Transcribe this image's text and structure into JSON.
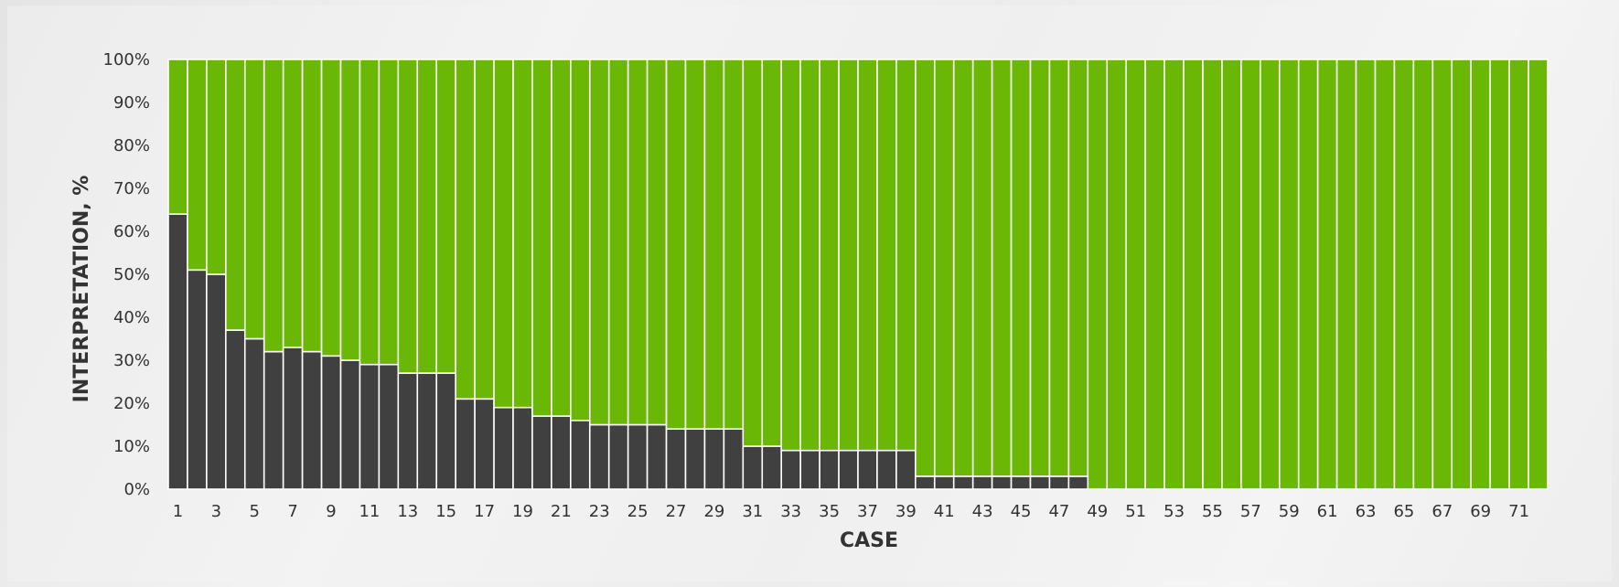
{
  "chart_data": {
    "type": "bar",
    "stacked": true,
    "percent_stacked": true,
    "title": "",
    "xlabel": "CASE",
    "ylabel": "INTERPRETATION, %",
    "ylim": [
      0,
      100
    ],
    "y_ticks": [
      "0%",
      "10%",
      "20%",
      "30%",
      "40%",
      "50%",
      "60%",
      "70%",
      "80%",
      "90%",
      "100%"
    ],
    "x_tick_labels": [
      "1",
      "3",
      "5",
      "7",
      "9",
      "11",
      "13",
      "15",
      "17",
      "19",
      "21",
      "23",
      "25",
      "27",
      "29",
      "31",
      "33",
      "35",
      "37",
      "39",
      "41",
      "43",
      "45",
      "47",
      "49",
      "51",
      "53",
      "55",
      "57",
      "59",
      "61",
      "63",
      "65",
      "67",
      "69",
      "71"
    ],
    "categories": [
      1,
      2,
      3,
      4,
      5,
      6,
      7,
      8,
      9,
      10,
      11,
      12,
      13,
      14,
      15,
      16,
      17,
      18,
      19,
      20,
      21,
      22,
      23,
      24,
      25,
      26,
      27,
      28,
      29,
      30,
      31,
      32,
      33,
      34,
      35,
      36,
      37,
      38,
      39,
      40,
      41,
      42,
      43,
      44,
      45,
      46,
      47,
      48,
      49,
      50,
      51,
      52,
      53,
      54,
      55,
      56,
      57,
      58,
      59,
      60,
      61,
      62,
      63,
      64,
      65,
      66,
      67,
      68,
      69,
      70,
      71,
      72
    ],
    "grid": false,
    "legend": "none",
    "series": [
      {
        "color": "#404040",
        "values": [
          64,
          51,
          50,
          37,
          35,
          32,
          33,
          32,
          31,
          30,
          29,
          29,
          27,
          27,
          27,
          21,
          21,
          19,
          19,
          17,
          17,
          16,
          15,
          15,
          15,
          15,
          14,
          14,
          14,
          14,
          10,
          10,
          9,
          9,
          9,
          9,
          9,
          9,
          9,
          3,
          3,
          3,
          3,
          3,
          3,
          3,
          3,
          3,
          0,
          0,
          0,
          0,
          0,
          0,
          0,
          0,
          0,
          0,
          0,
          0,
          0,
          0,
          0,
          0,
          0,
          0,
          0,
          0,
          0,
          0,
          0,
          0
        ]
      },
      {
        "color": "#6ab705",
        "values": [
          36,
          49,
          50,
          63,
          65,
          68,
          67,
          68,
          69,
          70,
          71,
          71,
          73,
          73,
          73,
          79,
          79,
          81,
          81,
          83,
          83,
          84,
          85,
          85,
          85,
          85,
          86,
          86,
          86,
          86,
          90,
          90,
          91,
          91,
          91,
          91,
          91,
          91,
          91,
          97,
          97,
          97,
          97,
          97,
          97,
          97,
          97,
          97,
          100,
          100,
          100,
          100,
          100,
          100,
          100,
          100,
          100,
          100,
          100,
          100,
          100,
          100,
          100,
          100,
          100,
          100,
          100,
          100,
          100,
          100,
          100,
          100
        ]
      }
    ]
  }
}
